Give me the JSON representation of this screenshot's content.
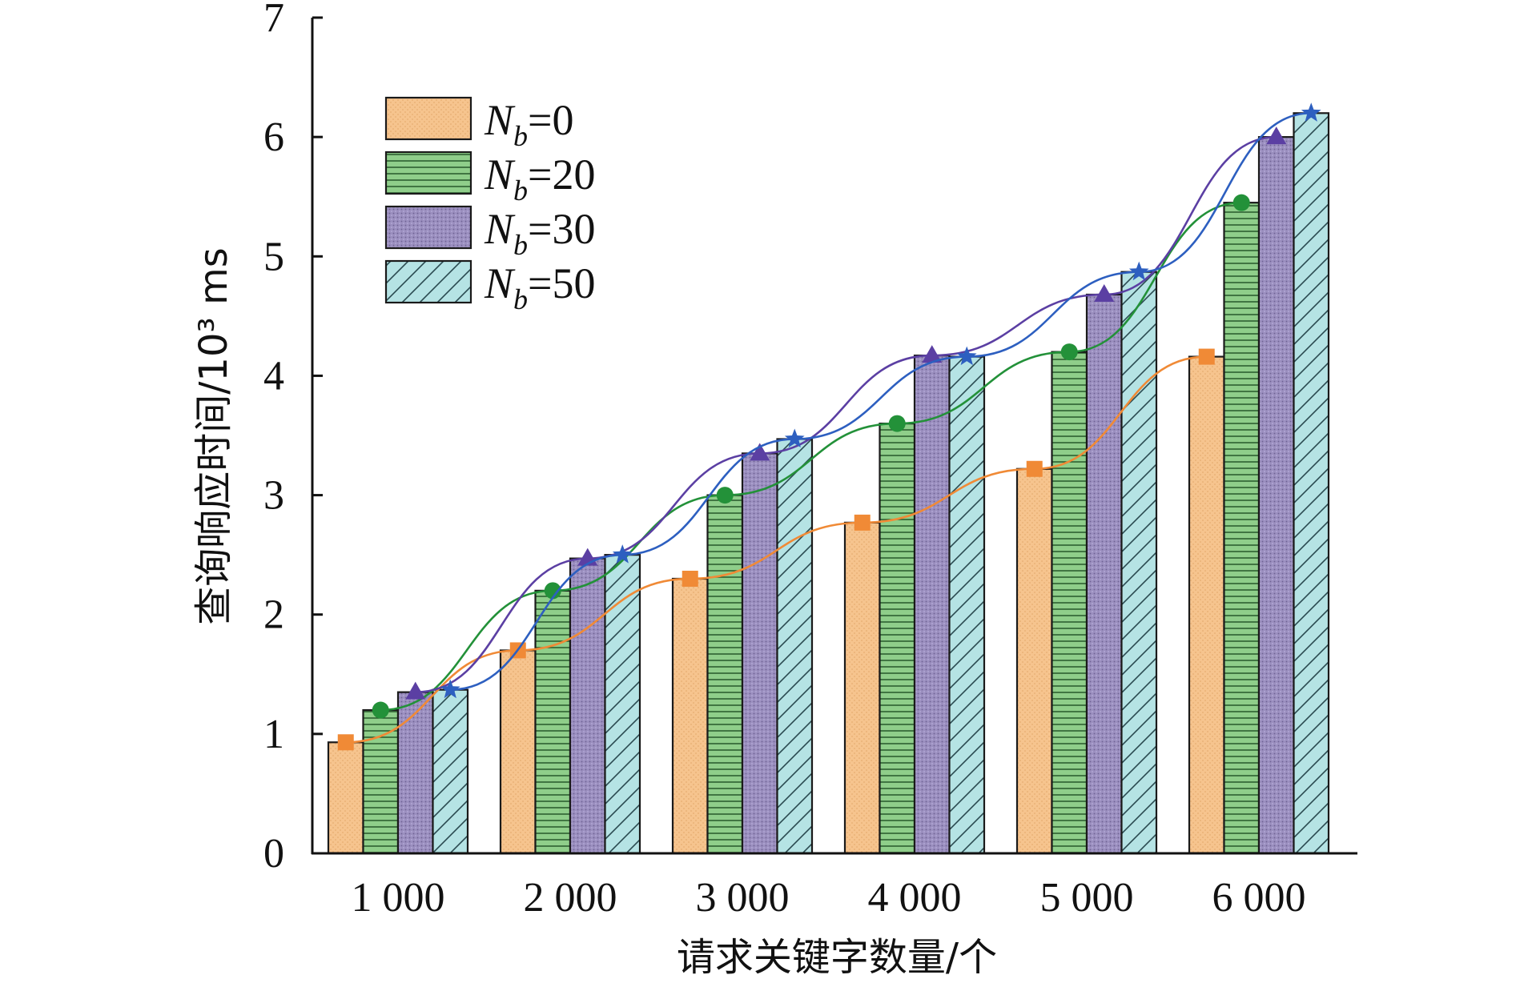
{
  "chart_data": {
    "type": "bar",
    "title": "",
    "xlabel": "请求关键字数量/个",
    "ylabel": "查询响应时间/10³ ms",
    "ylim": [
      0,
      7
    ],
    "yticks": [
      "0",
      "1",
      "2",
      "3",
      "4",
      "5",
      "6",
      "7"
    ],
    "categories": [
      "1 000",
      "2 000",
      "3 000",
      "4 000",
      "5 000",
      "6 000"
    ],
    "legend_position": "top-left",
    "overlay_lines": true,
    "series": [
      {
        "name": "N_b=0",
        "legend_sub": "b",
        "legend_value": "=0",
        "color": "#f6c48e",
        "line_color": "#f08a36",
        "marker": "square",
        "pattern": "dots",
        "values": [
          0.93,
          1.7,
          2.3,
          2.77,
          3.22,
          4.16
        ]
      },
      {
        "name": "N_b=20",
        "legend_sub": "b",
        "legend_value": "=20",
        "color": "#8fce8a",
        "line_color": "#239139",
        "marker": "circle",
        "pattern": "hlines",
        "values": [
          1.2,
          2.2,
          3.0,
          3.6,
          4.2,
          5.45
        ]
      },
      {
        "name": "N_b=30",
        "legend_sub": "b",
        "legend_value": "=30",
        "color": "#9b8fbf",
        "line_color": "#5b3fa3",
        "marker": "triangle",
        "pattern": "grid",
        "values": [
          1.35,
          2.47,
          3.35,
          4.17,
          4.68,
          6.0
        ]
      },
      {
        "name": "N_b=50",
        "legend_sub": "b",
        "legend_value": "=50",
        "color": "#b5e3e4",
        "line_color": "#2d5fc0",
        "marker": "star",
        "pattern": "diag",
        "values": [
          1.37,
          2.5,
          3.47,
          4.16,
          4.87,
          6.2
        ]
      }
    ]
  }
}
